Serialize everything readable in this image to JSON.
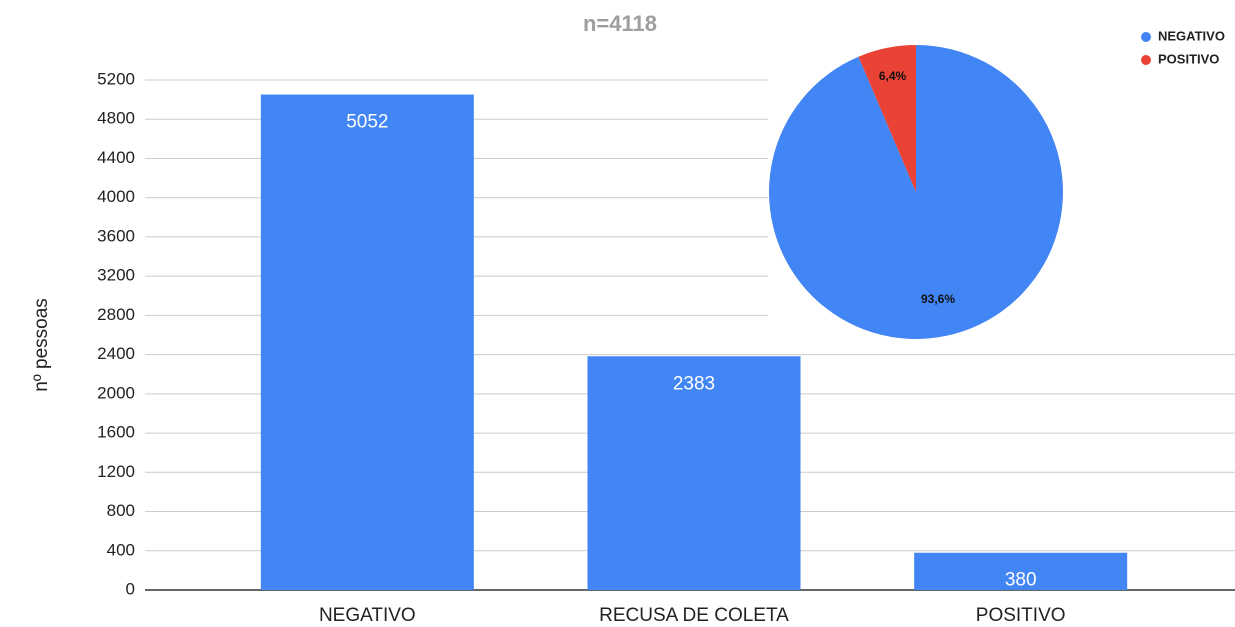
{
  "chart_data": [
    {
      "type": "bar",
      "y_label": "nº pessoas",
      "categories": [
        "NEGATIVO",
        "RECUSA DE COLETA",
        "POSITIVO"
      ],
      "values": [
        5052,
        2383,
        380
      ],
      "color": "#4285f4",
      "ylim": [
        0,
        5200
      ],
      "yticks": [
        0,
        400,
        800,
        1200,
        1600,
        2000,
        2400,
        2800,
        3200,
        3600,
        4000,
        4400,
        4800,
        5200
      ],
      "grid": true
    },
    {
      "type": "pie",
      "title": "n=4118",
      "categories": [
        "NEGATIVO",
        "POSITIVO"
      ],
      "values": [
        93.6,
        6.4
      ],
      "value_labels": [
        "93,6%",
        "6,4%"
      ],
      "colors": [
        "#4285f4",
        "#ea4335"
      ],
      "legend": "upper right"
    }
  ]
}
